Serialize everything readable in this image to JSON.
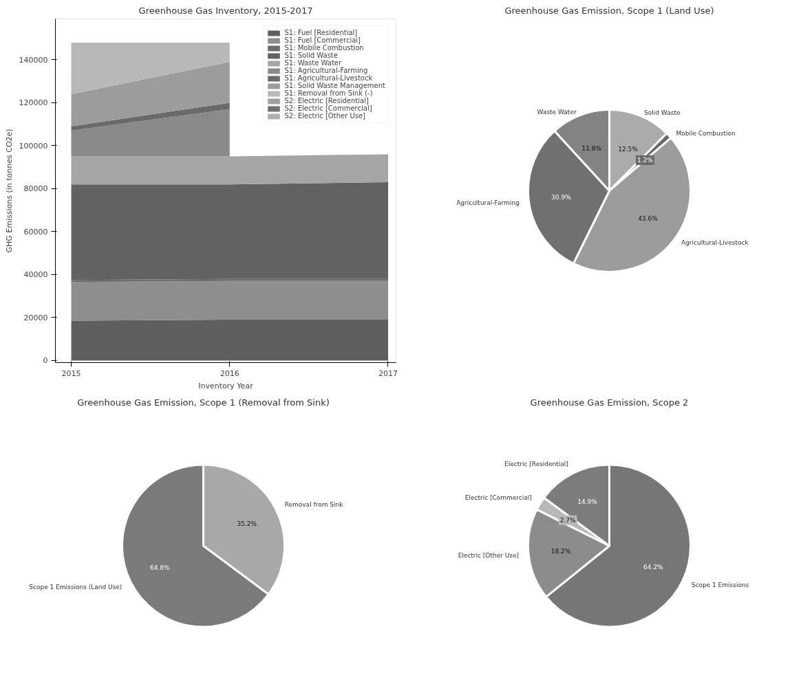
{
  "chart_data": [
    {
      "type": "area",
      "stacked": true,
      "title": "Greenhouse Gas Inventory, 2015-2017",
      "xlabel": "Inventory Year",
      "ylabel": "GHG Emissions (in tonnes CO2e)",
      "x": [
        2015,
        2016,
        2017
      ],
      "xlim": [
        2014.9,
        2017.05
      ],
      "xticks": [
        2015,
        2016,
        2017
      ],
      "ylim": [
        -1000,
        159000
      ],
      "yticks": [
        0,
        20000,
        40000,
        60000,
        80000,
        100000,
        120000,
        140000
      ],
      "legend": "top right",
      "series": [
        {
          "name": "S1: Fuel [Residential]",
          "color": "#5f5f5f",
          "values": [
            18500,
            19000,
            19000
          ]
        },
        {
          "name": "S1: Fuel [Commercial]",
          "color": "#8e8e8e",
          "values": [
            18000,
            18000,
            18000
          ]
        },
        {
          "name": "S1: Mobile Combustion",
          "color": "#6c6c6c",
          "values": [
            1000,
            1000,
            1000
          ]
        },
        {
          "name": "S1: Solid Waste",
          "color": "#626262",
          "values": [
            44500,
            44000,
            45000
          ]
        },
        {
          "name": "S1: Waste Water",
          "color": "#a5a5a5",
          "values": [
            13000,
            13000,
            13000
          ]
        },
        {
          "name": "S1: Agricultural-Farming",
          "color": "#8a8a8a",
          "values": [
            12000,
            22000,
            null
          ]
        },
        {
          "name": "S1: Agricultural-Livestock",
          "color": "#6a6a6a",
          "values": [
            2000,
            3000,
            null
          ]
        },
        {
          "name": "S1: Solid Waste Management",
          "color": "#9c9c9c",
          "values": [
            15000,
            19000,
            null
          ]
        },
        {
          "name": "S1: Removal from Sink (-)",
          "color": "#b8b8b8",
          "values": [
            24000,
            9000,
            null
          ]
        },
        {
          "name": "S2: Electric [Residential]",
          "color": "#a0a0a0",
          "values": [
            null,
            null,
            null
          ]
        },
        {
          "name": "S2: Electric [Commercial]",
          "color": "#707070",
          "values": [
            null,
            null,
            null
          ]
        },
        {
          "name": "S2: Electric [Other Use]",
          "color": "#b0b0b0",
          "values": [
            null,
            null,
            null
          ]
        }
      ]
    },
    {
      "type": "pie",
      "title": "Greenhouse Gas Emission, Scope 1 (Land Use)",
      "categories": [
        "Solid Waste",
        "Mobile Combustion",
        "Agricultural-Livestock",
        "Agricultural-Farming",
        "Waste Water"
      ],
      "values": [
        12.5,
        1.2,
        43.6,
        30.9,
        11.8
      ],
      "value_labels": [
        "12.5%",
        "1.2%",
        "43.6%",
        "30.9%",
        "11.8%"
      ],
      "colors": [
        "#ababab",
        "#6a6a6a",
        "#9c9c9c",
        "#707070",
        "#838383"
      ]
    },
    {
      "type": "pie",
      "title": "Greenhouse Gas Emission, Scope 1 (Removal from Sink)",
      "categories": [
        "Removal from Sink",
        "Scope 1 Emissions (Land Use)"
      ],
      "values": [
        35.2,
        64.8
      ],
      "value_labels": [
        "35.2%",
        "64.8%"
      ],
      "colors": [
        "#a8a8a8",
        "#7a7a7a"
      ]
    },
    {
      "type": "pie",
      "title": "Greenhouse Gas Emission, Scope 2",
      "categories": [
        "Scope 1 Emissions",
        "Electric [Other Use]",
        "Electric [Commercial]",
        "Electric [Residential]"
      ],
      "values": [
        64.2,
        18.2,
        2.7,
        14.9
      ],
      "value_labels": [
        "64.2%",
        "18.2%",
        "2.7%",
        "14.9%"
      ],
      "colors": [
        "#767676",
        "#8c8c8c",
        "#b8b8b8",
        "#7c7c7c"
      ]
    }
  ]
}
